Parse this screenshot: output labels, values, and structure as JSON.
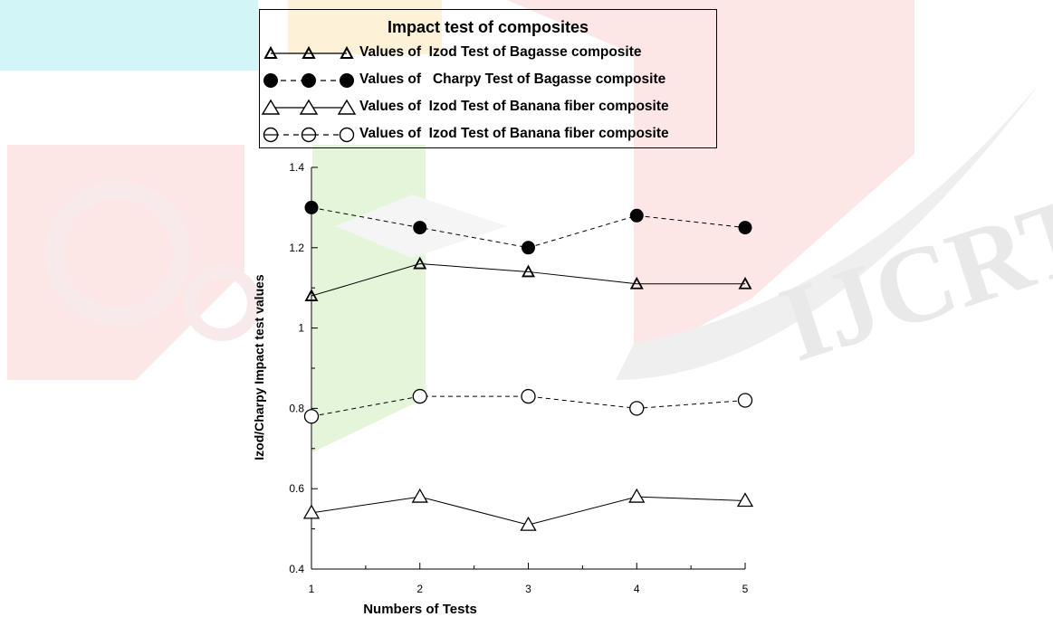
{
  "chart_data": {
    "type": "line",
    "title": "Impact test of composites",
    "xlabel": "Numbers of Tests",
    "ylabel": "Izod/Charpy Impact test values",
    "x": [
      1,
      2,
      3,
      4,
      5
    ],
    "xlim": [
      1,
      5
    ],
    "ylim": [
      0.4,
      1.4
    ],
    "x_ticks": [
      "1",
      "2",
      "3",
      "4",
      "5"
    ],
    "y_ticks": [
      "0.4",
      "0.6",
      "0.8",
      "1",
      "1.2",
      "1.4"
    ],
    "grid": false,
    "legend_position": "top",
    "series": [
      {
        "name": "Values of  Izod Test of Bagasse composite",
        "values": [
          1.08,
          1.16,
          1.14,
          1.11,
          1.11
        ],
        "marker": "triangle-small",
        "line": "solid",
        "color": "#000000"
      },
      {
        "name": "Values of   Charpy Test of Bagasse composite",
        "values": [
          1.3,
          1.25,
          1.2,
          1.28,
          1.25
        ],
        "marker": "circle-filled",
        "line": "dashed",
        "color": "#000000"
      },
      {
        "name": "Values of  Izod Test of Banana fiber composite",
        "values": [
          0.54,
          0.58,
          0.51,
          0.58,
          0.57
        ],
        "marker": "triangle-open",
        "line": "solid",
        "color": "#000000"
      },
      {
        "name": "Values of  Izod Test of Banana fiber composite",
        "values": [
          0.78,
          0.83,
          0.83,
          0.8,
          0.82
        ],
        "marker": "circle-open",
        "line": "dashed",
        "color": "#000000"
      }
    ]
  },
  "watermark": {
    "text": "IJCRT"
  }
}
